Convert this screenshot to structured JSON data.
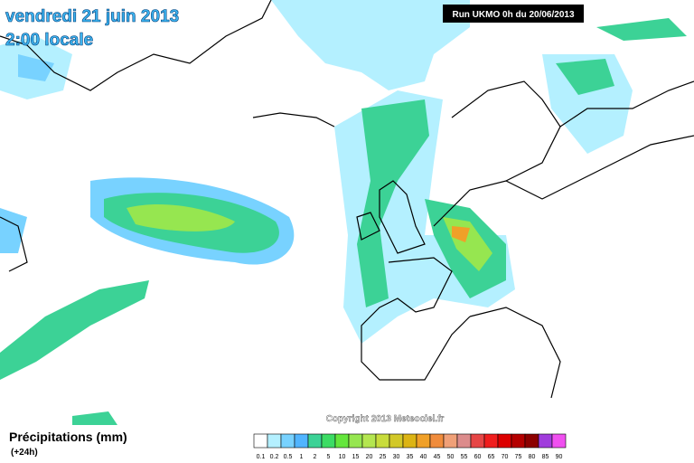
{
  "header": {
    "date": "vendredi 21 juin 2013",
    "time": "2:00 locale",
    "run": "Run UKMO 0h du 20/06/2013"
  },
  "footer": {
    "copyright": "Copyright 2013 Meteociel.fr",
    "legend_title": "Précipitations (mm)",
    "legend_subtitle": "(+24h)"
  },
  "legend": {
    "labels": [
      "0.1",
      "0.2",
      "0.5",
      "1",
      "2",
      "5",
      "10",
      "15",
      "20",
      "25",
      "30",
      "35",
      "40",
      "45",
      "50",
      "55",
      "60",
      "65",
      "70",
      "75",
      "80",
      "85",
      "90"
    ],
    "colors": [
      "#ffffff",
      "#b4f0ff",
      "#78d2ff",
      "#50b4ff",
      "#3cd296",
      "#3cdc64",
      "#64e63c",
      "#96e650",
      "#b4e650",
      "#c8dc3c",
      "#d2c828",
      "#dcb414",
      "#f0a028",
      "#f08c3c",
      "#f0a078",
      "#dc8c8c",
      "#e64646",
      "#f01e1e",
      "#dc0000",
      "#b40000",
      "#8c0000",
      "#a03cdc",
      "#f050f0"
    ]
  }
}
